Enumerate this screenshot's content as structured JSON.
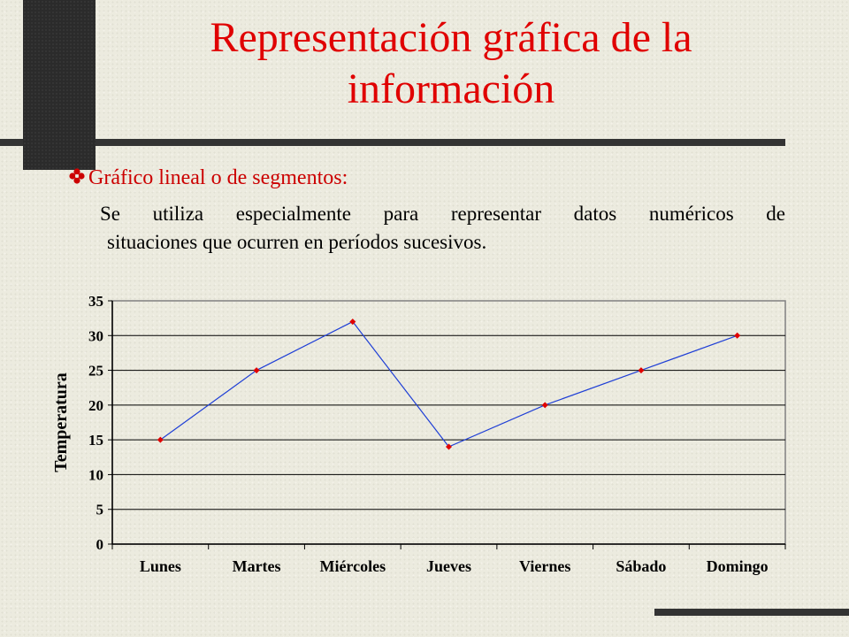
{
  "slide": {
    "title": "Representación gráfica de la información",
    "bullet": "Gráfico lineal o de segmentos:",
    "body_line1": "Se utiliza especialmente para representar datos numéricos de",
    "body_line2": "situaciones que ocurren en períodos sucesivos."
  },
  "colors": {
    "title": "#e00000",
    "bullet": "#cc0000",
    "line": "#1f3fd6",
    "marker": "#e00000"
  },
  "chart_data": {
    "type": "line",
    "title": "",
    "xlabel": "",
    "ylabel": "Temperatura",
    "categories": [
      "Lunes",
      "Martes",
      "Miércoles",
      "Jueves",
      "Viernes",
      "Sábado",
      "Domingo"
    ],
    "series": [
      {
        "values": [
          15,
          25,
          32,
          14,
          20,
          25,
          30
        ]
      }
    ],
    "ylim": [
      0,
      35
    ],
    "yticks": [
      0,
      5,
      10,
      15,
      20,
      25,
      30,
      35
    ],
    "grid": true,
    "legend": "none"
  }
}
